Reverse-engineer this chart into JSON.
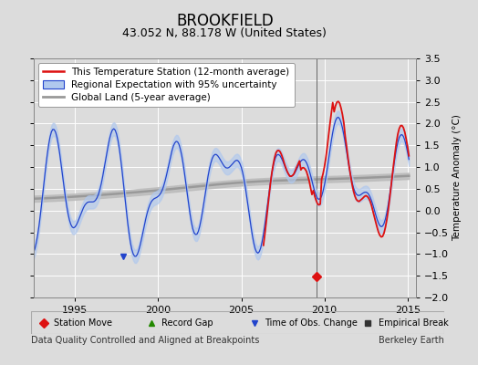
{
  "title": "BROOKFIELD",
  "subtitle": "43.052 N, 88.178 W (United States)",
  "ylabel": "Temperature Anomaly (°C)",
  "xlabel_left": "Data Quality Controlled and Aligned at Breakpoints",
  "xlabel_right": "Berkeley Earth",
  "xlim": [
    1992.5,
    2015.5
  ],
  "ylim": [
    -2.0,
    3.5
  ],
  "yticks": [
    -2,
    -1.5,
    -1,
    -0.5,
    0,
    0.5,
    1,
    1.5,
    2,
    2.5,
    3,
    3.5
  ],
  "xticks": [
    1995,
    2000,
    2005,
    2010,
    2015
  ],
  "background_color": "#dcdcdc",
  "plot_bg_color": "#dcdcdc",
  "grid_color": "#ffffff",
  "title_fontsize": 12,
  "subtitle_fontsize": 9,
  "legend_fontsize": 7.5,
  "tick_fontsize": 8,
  "footnote_fontsize": 7
}
